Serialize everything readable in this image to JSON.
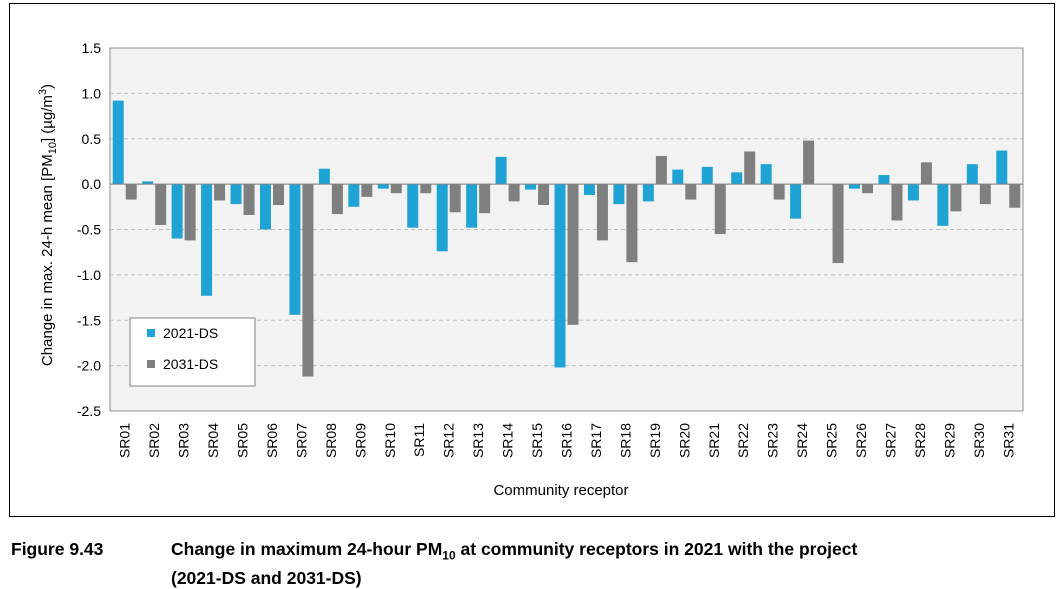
{
  "caption": {
    "figure_number": "Figure 9.43",
    "text_part1": "Change in maximum 24-hour PM",
    "text_sub": "10",
    "text_part2": " at community receptors in 2021 with the project",
    "text_line2": "(2021-DS and 2031-DS)"
  },
  "chart_data": {
    "type": "bar",
    "title": "",
    "xlabel": "Community receptor",
    "ylabel": "Change in max. 24-h mean [PM10] (µg/m3)",
    "ylabel_parts": {
      "before": "Change in max. 24-h mean [PM",
      "sub": "10",
      "middle": "] (µg/m",
      "sup": "3",
      "after": ")"
    },
    "ylim": [
      -2.5,
      1.5
    ],
    "yticks": [
      1.5,
      1.0,
      0.5,
      0.0,
      -0.5,
      -1.0,
      -1.5,
      -2.0,
      -2.5
    ],
    "ytick_labels": [
      "1.5",
      "1.0",
      "0.5",
      "0.0",
      "-0.5",
      "-1.0",
      "-1.5",
      "-2.0",
      "-2.5"
    ],
    "grid": true,
    "legend_position": "bottom-left",
    "colors": {
      "plot_bg": "#f2f2f2",
      "grid": "#bfbfbf"
    },
    "categories": [
      "SR01",
      "SR02",
      "SR03",
      "SR04",
      "SR05",
      "SR06",
      "SR07",
      "SR08",
      "SR09",
      "SR10",
      "SR11",
      "SR12",
      "SR13",
      "SR14",
      "SR15",
      "SR16",
      "SR17",
      "SR18",
      "SR19",
      "SR20",
      "SR21",
      "SR22",
      "SR23",
      "SR24",
      "SR25",
      "SR26",
      "SR27",
      "SR28",
      "SR29",
      "SR30",
      "SR31"
    ],
    "series": [
      {
        "name": "2021-DS",
        "color": "#1fa3d4",
        "values": [
          0.92,
          0.03,
          -0.6,
          -1.23,
          -0.22,
          -0.5,
          -1.44,
          0.17,
          -0.25,
          -0.05,
          -0.48,
          -0.74,
          -0.48,
          0.3,
          -0.06,
          -2.02,
          -0.12,
          -0.22,
          -0.19,
          0.16,
          0.19,
          0.13,
          0.22,
          -0.38,
          0.0,
          -0.05,
          0.1,
          -0.18,
          -0.46,
          0.22,
          0.37
        ]
      },
      {
        "name": "2031-DS",
        "color": "#7f7f7f",
        "values": [
          -0.17,
          -0.45,
          -0.62,
          -0.18,
          -0.34,
          -0.23,
          -2.12,
          -0.33,
          -0.14,
          -0.1,
          -0.1,
          -0.31,
          -0.32,
          -0.19,
          -0.23,
          -1.55,
          -0.62,
          -0.86,
          0.31,
          -0.17,
          -0.55,
          0.36,
          -0.17,
          0.48,
          -0.87,
          -0.1,
          -0.4,
          0.24,
          -0.3,
          -0.22,
          -0.26
        ]
      }
    ]
  }
}
